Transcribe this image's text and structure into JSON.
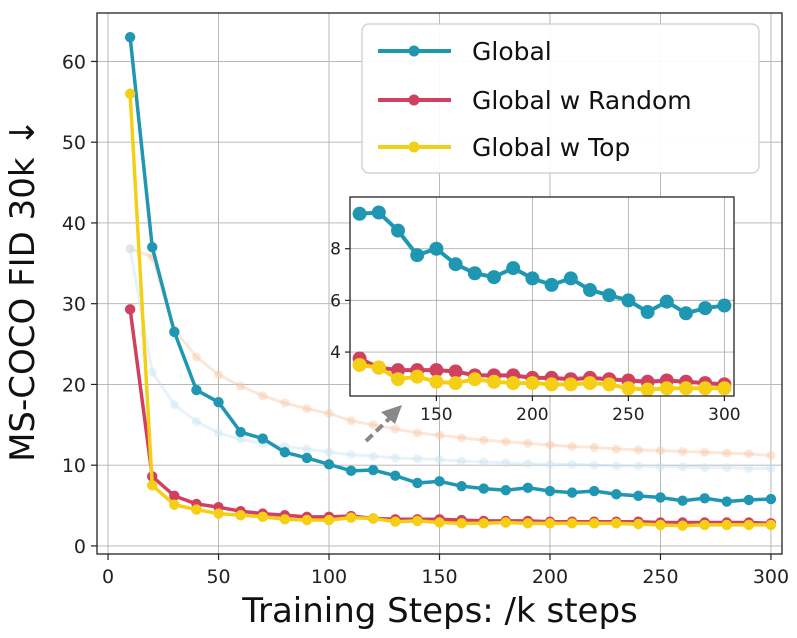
{
  "chart_data": {
    "type": "line",
    "xlabel": "Training Steps: /k steps",
    "ylabel": "MS-COCO FID 30k ↓",
    "xlim": [
      -5,
      305
    ],
    "ylim": [
      -1,
      66
    ],
    "xticks": [
      0,
      50,
      100,
      150,
      200,
      250,
      300
    ],
    "yticks": [
      0,
      10,
      20,
      30,
      40,
      50,
      60
    ],
    "grid": true,
    "legend_position": "top-right",
    "x": [
      10,
      20,
      30,
      40,
      50,
      60,
      70,
      80,
      90,
      100,
      110,
      120,
      130,
      140,
      150,
      160,
      170,
      180,
      190,
      200,
      210,
      220,
      230,
      240,
      250,
      260,
      270,
      280,
      290,
      300
    ],
    "series": [
      {
        "name": "Global",
        "color": "#1f97b2",
        "values": [
          63.0,
          37.0,
          26.5,
          19.3,
          17.8,
          14.1,
          13.3,
          11.6,
          10.9,
          10.1,
          9.3,
          9.4,
          8.7,
          7.8,
          8.0,
          7.4,
          7.1,
          6.9,
          7.2,
          6.8,
          6.6,
          6.8,
          6.4,
          6.2,
          6.0,
          5.6,
          5.9,
          5.5,
          5.7,
          5.8
        ]
      },
      {
        "name": "Global w Random",
        "color": "#d0405f",
        "values": [
          29.3,
          8.6,
          6.2,
          5.2,
          4.8,
          4.3,
          4.0,
          3.8,
          3.6,
          3.6,
          3.7,
          3.4,
          3.3,
          3.3,
          3.3,
          3.2,
          3.1,
          3.1,
          3.1,
          3.0,
          3.0,
          3.0,
          3.0,
          3.0,
          2.9,
          2.9,
          2.9,
          2.9,
          2.9,
          2.8
        ]
      },
      {
        "name": "Global w Top",
        "color": "#f5cf16",
        "values": [
          56.0,
          7.5,
          5.1,
          4.5,
          4.0,
          3.8,
          3.6,
          3.3,
          3.2,
          3.2,
          3.5,
          3.4,
          3.0,
          3.1,
          2.9,
          2.8,
          2.8,
          2.9,
          2.8,
          2.8,
          2.8,
          2.8,
          2.8,
          2.7,
          2.6,
          2.5,
          2.6,
          2.6,
          2.6,
          2.6
        ]
      }
    ],
    "background_series": [
      {
        "color": "#f6c8a8",
        "values": [
          36.8,
          35.8,
          26.8,
          23.4,
          21.2,
          19.8,
          18.6,
          17.7,
          17.0,
          16.4,
          15.5,
          15.0,
          14.5,
          14.0,
          13.7,
          13.4,
          13.1,
          12.9,
          12.7,
          12.5,
          12.3,
          12.2,
          12.0,
          11.9,
          11.8,
          11.7,
          11.6,
          11.5,
          11.4,
          11.2
        ]
      },
      {
        "color": "#c9e4f2",
        "values": [
          36.8,
          21.5,
          17.5,
          15.4,
          14.0,
          13.2,
          12.7,
          12.3,
          12.0,
          11.6,
          11.3,
          11.1,
          10.9,
          10.8,
          10.7,
          10.5,
          10.4,
          10.3,
          10.2,
          10.1,
          10.1,
          10.0,
          9.9,
          9.9,
          9.8,
          9.8,
          9.7,
          9.7,
          9.6,
          9.6
        ]
      }
    ],
    "inset": {
      "xlim": [
        105,
        305
      ],
      "ylim": [
        2.3,
        10.0
      ],
      "xticks": [
        150,
        200,
        250,
        300
      ],
      "yticks": [
        4,
        6,
        8
      ],
      "x": [
        110,
        120,
        130,
        140,
        150,
        160,
        170,
        180,
        190,
        200,
        210,
        220,
        230,
        240,
        250,
        260,
        270,
        280,
        290,
        300
      ],
      "series": [
        {
          "name": "Global",
          "color": "#1f97b2",
          "values": [
            9.35,
            9.4,
            8.7,
            7.75,
            8.0,
            7.4,
            7.05,
            6.9,
            7.25,
            6.85,
            6.6,
            6.85,
            6.4,
            6.2,
            6.0,
            5.55,
            5.95,
            5.5,
            5.7,
            5.8
          ]
        },
        {
          "name": "Global w Random",
          "color": "#d0405f",
          "values": [
            3.75,
            3.4,
            3.3,
            3.3,
            3.3,
            3.25,
            3.1,
            3.1,
            3.1,
            3.0,
            3.0,
            2.95,
            3.0,
            2.95,
            2.9,
            2.85,
            2.9,
            2.85,
            2.8,
            2.75
          ]
        },
        {
          "name": "Global w Top",
          "color": "#f5cf16",
          "values": [
            3.5,
            3.4,
            2.95,
            3.05,
            2.85,
            2.8,
            2.95,
            2.85,
            2.8,
            2.8,
            2.75,
            2.75,
            2.8,
            2.75,
            2.6,
            2.55,
            2.6,
            2.6,
            2.6,
            2.6
          ]
        }
      ]
    }
  }
}
